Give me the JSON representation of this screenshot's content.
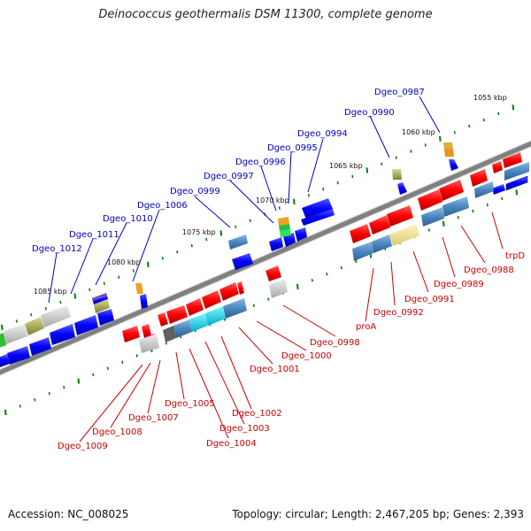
{
  "title": "Deinococcus geothermalis DSM 11300, complete genome",
  "footer": {
    "accession": "Accession: NC_008025",
    "stats": "Topology: circular; Length: 2,467,205 bp; Genes: 2,393"
  },
  "colors": {
    "backbone": "#808080",
    "forward_gene": "#ff0000",
    "reverse_gene": "#0000ff",
    "steelblue_gene": "#4a86c0",
    "cyan_gene": "#00d0e0",
    "khaki_gene": "#f0e68c",
    "olive_gene": "#9a9a3a",
    "gray_gene": "#c8c8c8",
    "purple_gene": "#7050c0",
    "green_gene": "#30c030",
    "orange_gene": "#f0a020",
    "magenta_gene": "#e000a0",
    "tick": "#008000",
    "label_top": "#0000c0",
    "label_bottom": "#cc0000"
  },
  "scale_labels": [
    "1055 kbp",
    "1060 kbp",
    "1065 kbp",
    "1070 kbp",
    "1075 kbp",
    "1080 kbp",
    "1085 kbp"
  ],
  "top_labels": [
    "Dgeo_0987",
    "Dgeo_0990",
    "Dgeo_0994",
    "Dgeo_0995",
    "Dgeo_0996",
    "Dgeo_0997",
    "Dgeo_0999",
    "Dgeo_1006",
    "Dgeo_1010",
    "Dgeo_1011",
    "Dgeo_1012"
  ],
  "bottom_labels": [
    "trpD",
    "Dgeo_0988",
    "Dgeo_0989",
    "Dgeo_0991",
    "Dgeo_0992",
    "proA",
    "Dgeo_0998",
    "Dgeo_1000",
    "Dgeo_1001",
    "Dgeo_1002",
    "Dgeo_1003",
    "Dgeo_1004",
    "Dgeo_1005",
    "Dgeo_1007",
    "Dgeo_1008",
    "Dgeo_1009"
  ]
}
